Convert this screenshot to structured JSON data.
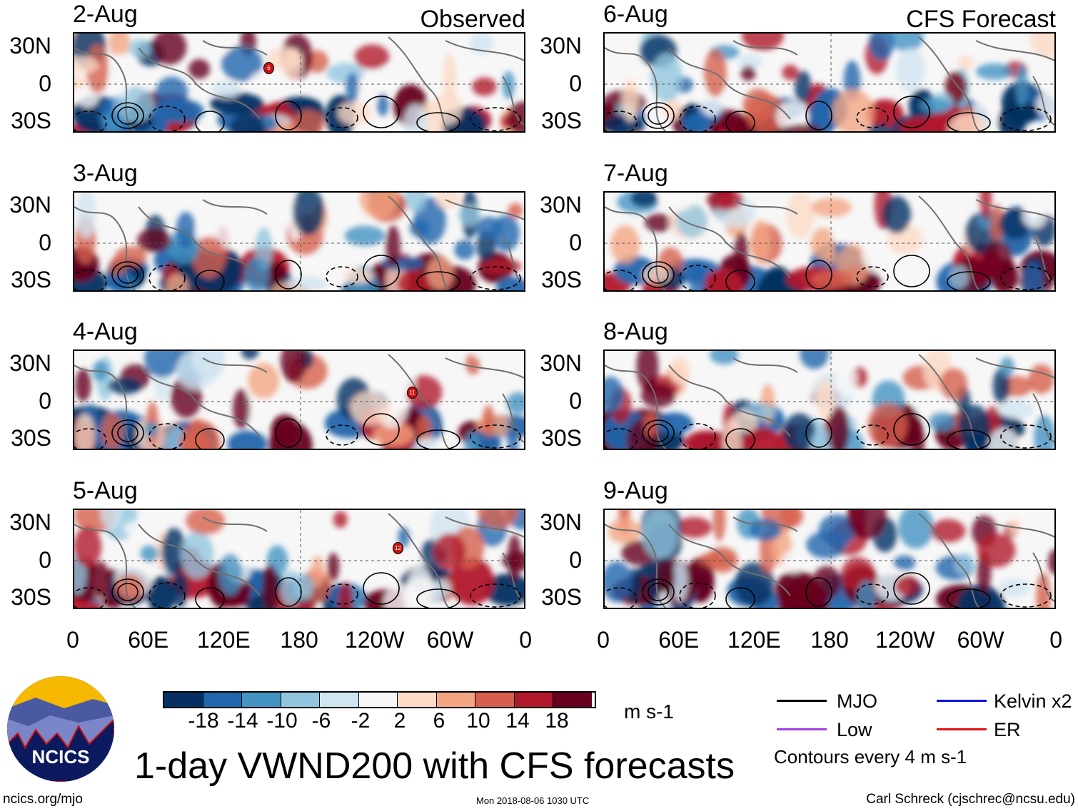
{
  "title": "1-day VWND200 with CFS forecasts",
  "panels_left_header": "Observed",
  "panels_right_header": "CFS Forecast",
  "panels": [
    {
      "date": "2-Aug",
      "group": "observed",
      "storm": "6"
    },
    {
      "date": "3-Aug",
      "group": "observed",
      "storm": null
    },
    {
      "date": "4-Aug",
      "group": "observed",
      "storm": "11"
    },
    {
      "date": "5-Aug",
      "group": "observed",
      "storm": "12"
    },
    {
      "date": "6-Aug",
      "group": "forecast",
      "storm": null
    },
    {
      "date": "7-Aug",
      "group": "forecast",
      "storm": null
    },
    {
      "date": "8-Aug",
      "group": "forecast",
      "storm": null
    },
    {
      "date": "9-Aug",
      "group": "forecast",
      "storm": null
    }
  ],
  "lat_labels": [
    "30N",
    "0",
    "30S"
  ],
  "lon_labels": [
    "0",
    "60E",
    "120E",
    "180",
    "120W",
    "60W",
    "0"
  ],
  "colorbar": {
    "colors": [
      "#053061",
      "#2166ac",
      "#4393c3",
      "#92c5de",
      "#d1e5f0",
      "#f7f7f7",
      "#fddbc7",
      "#f4a582",
      "#d6604d",
      "#b2182b",
      "#67001f"
    ],
    "labels": [
      "-18",
      "-14",
      "-10",
      "-6",
      "-2",
      "2",
      "6",
      "10",
      "14",
      "18"
    ],
    "units": "m s-1"
  },
  "legend": {
    "items": [
      {
        "label": "MJO",
        "color": "#000000"
      },
      {
        "label": "Kelvin x2",
        "color": "#1010e0"
      },
      {
        "label": "Low",
        "color": "#a040e0"
      },
      {
        "label": "ER",
        "color": "#e01010"
      }
    ],
    "note": "Contours every 4 m s-1"
  },
  "logo_text": "NCICS",
  "footer": {
    "url": "ncics.org/mjo",
    "timestamp": "Mon 2018-08-06 1030 UTC",
    "author": "Carl Schreck (cjschrec@ncsu.edu)"
  }
}
